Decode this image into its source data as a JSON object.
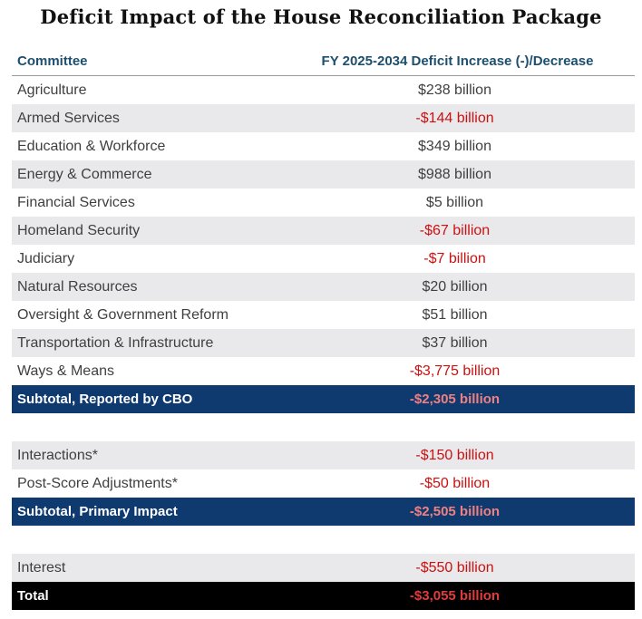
{
  "title": "Deficit Impact of the House Reconciliation Package",
  "header": {
    "committee": "Committee",
    "impact": "FY 2025-2034 Deficit Increase (-)/Decrease"
  },
  "rows": [
    {
      "committee": "Agriculture",
      "impact": "$238 billion"
    },
    {
      "committee": "Armed Services",
      "impact": "-$144 billion"
    },
    {
      "committee": "Education & Workforce",
      "impact": "$349 billion"
    },
    {
      "committee": "Energy & Commerce",
      "impact": "$988 billion"
    },
    {
      "committee": "Financial Services",
      "impact": "$5 billion"
    },
    {
      "committee": "Homeland Security",
      "impact": "-$67 billion"
    },
    {
      "committee": "Judiciary",
      "impact": "-$7 billion"
    },
    {
      "committee": "Natural Resources",
      "impact": "$20 billion"
    },
    {
      "committee": "Oversight & Government Reform",
      "impact": "$51 billion"
    },
    {
      "committee": "Transportation & Infrastructure",
      "impact": "$37 billion"
    },
    {
      "committee": "Ways & Means",
      "impact": "-$3,775 billion"
    }
  ],
  "subtotal_cbo": {
    "label": "Subtotal, Reported by CBO",
    "impact": "-$2,305 billion"
  },
  "adjustments": [
    {
      "committee": "Interactions*",
      "impact": "-$150 billion"
    },
    {
      "committee": "Post-Score Adjustments*",
      "impact": "-$50 billion"
    }
  ],
  "subtotal_primary": {
    "label": "Subtotal, Primary Impact",
    "impact": "-$2,505 billion"
  },
  "interest": {
    "committee": "Interest",
    "impact": "-$550 billion"
  },
  "total": {
    "label": "Total",
    "impact": "-$3,055 billion"
  },
  "colors": {
    "header_text": "#1d4f6e",
    "negative": "#cc1111",
    "subtotal_bg": "#0f3a70",
    "shade": "#e9e9ec"
  }
}
